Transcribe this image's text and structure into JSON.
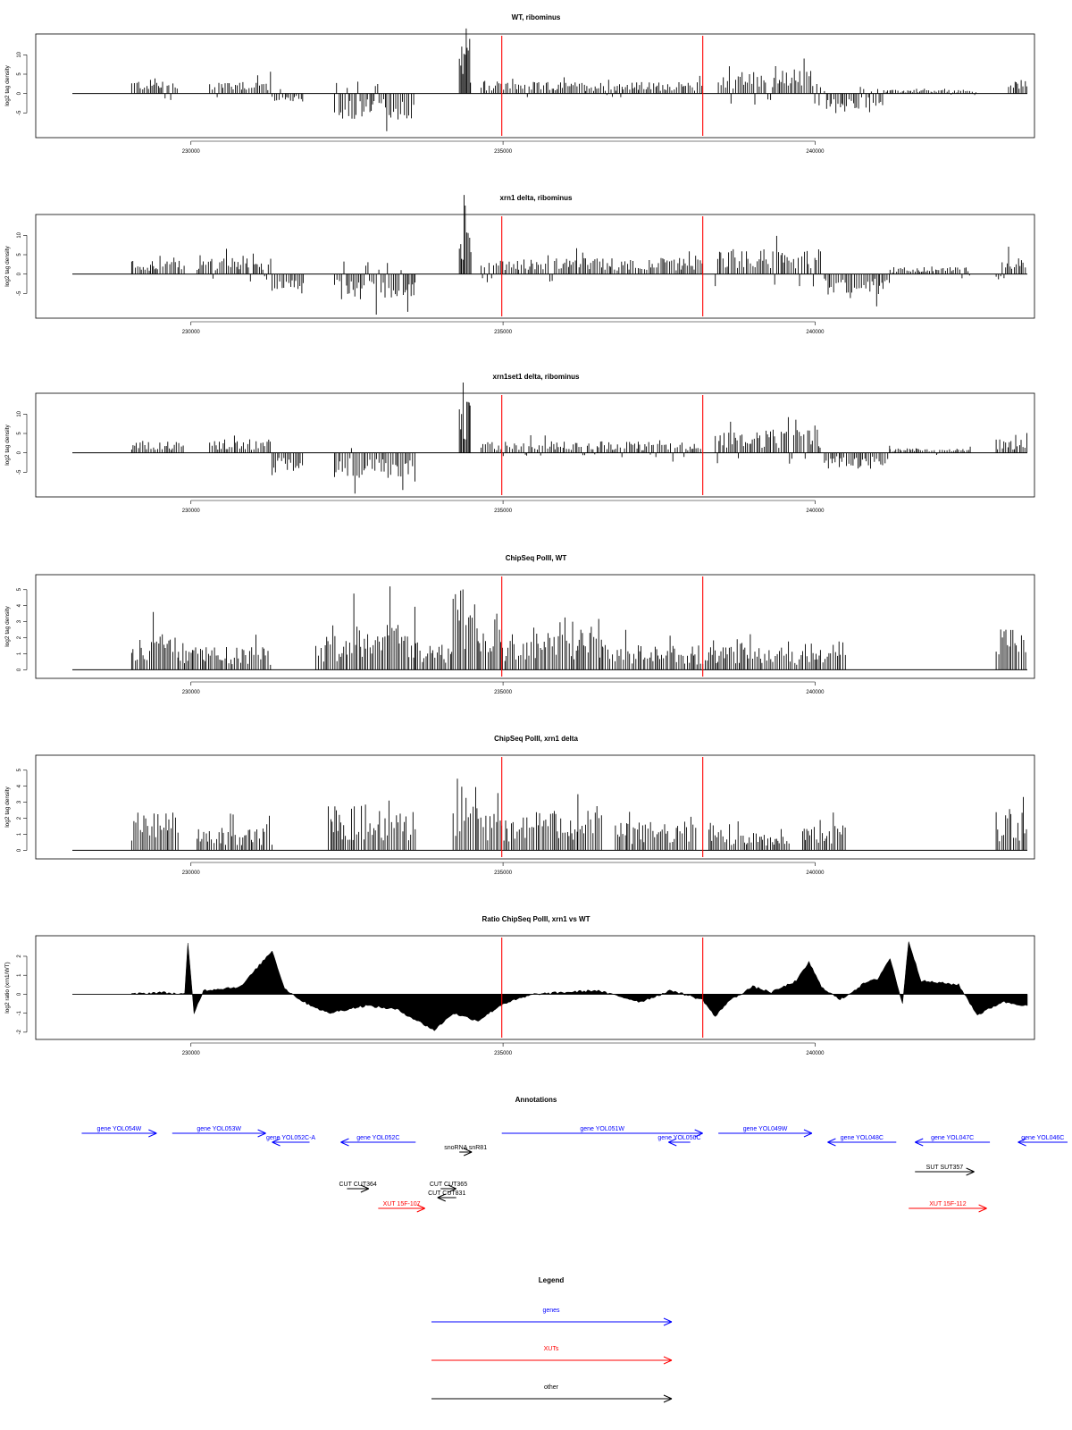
{
  "chart_data": [
    {
      "type": "bar",
      "title": "WT, ribominus",
      "ylabel": "log2 tag density",
      "xlim": [
        228100,
        243400
      ],
      "ylim": [
        -10,
        14
      ],
      "xticks": [
        230000,
        235000,
        240000
      ],
      "yticks": [
        -5,
        0,
        5,
        10
      ],
      "markers": [
        234980,
        238200
      ],
      "series": [
        {
          "segments": [
            {
              "x0": 229050,
              "x1": 229800,
              "level": 3
            },
            {
              "x0": 230300,
              "x1": 231300,
              "level": 3
            },
            {
              "x0": 231300,
              "x1": 231800,
              "level": -2
            },
            {
              "x0": 232300,
              "x1": 233600,
              "level": -5.5
            },
            {
              "x0": 234300,
              "x1": 234480,
              "level": 11
            },
            {
              "x0": 234650,
              "x1": 238200,
              "level": 2.5
            },
            {
              "x0": 238450,
              "x1": 240100,
              "level": 5
            },
            {
              "x0": 240150,
              "x1": 241100,
              "level": -3.5
            },
            {
              "x0": 241100,
              "x1": 242600,
              "level": 0.8
            },
            {
              "x0": 243100,
              "x1": 243400,
              "level": 3
            }
          ]
        }
      ]
    },
    {
      "type": "bar",
      "title": "xrn1 delta, ribominus",
      "ylabel": "log2 tag density",
      "xlim": [
        228100,
        243400
      ],
      "ylim": [
        -10,
        14
      ],
      "xticks": [
        230000,
        235000,
        240000
      ],
      "yticks": [
        -5,
        0,
        5,
        10
      ],
      "markers": [
        234980,
        238200
      ],
      "series": [
        {
          "segments": [
            {
              "x0": 229050,
              "x1": 229900,
              "level": 3
            },
            {
              "x0": 230100,
              "x1": 231300,
              "level": 3.5
            },
            {
              "x0": 231300,
              "x1": 231800,
              "level": -4.5
            },
            {
              "x0": 232300,
              "x1": 233600,
              "level": -5.5
            },
            {
              "x0": 234300,
              "x1": 234500,
              "level": 11
            },
            {
              "x0": 234650,
              "x1": 238200,
              "level": 3.5
            },
            {
              "x0": 238400,
              "x1": 240100,
              "level": 5.5
            },
            {
              "x0": 240150,
              "x1": 241200,
              "level": -4.5
            },
            {
              "x0": 241200,
              "x1": 242500,
              "level": 1.5
            },
            {
              "x0": 242900,
              "x1": 243400,
              "level": 4
            }
          ]
        }
      ]
    },
    {
      "type": "bar",
      "title": "xrn1set1 delta, ribominus",
      "ylabel": "log2 tag density",
      "xlim": [
        228100,
        243400
      ],
      "ylim": [
        -10,
        14
      ],
      "xticks": [
        230000,
        235000,
        240000
      ],
      "yticks": [
        -5,
        0,
        5,
        10
      ],
      "markers": [
        234980,
        238200
      ],
      "series": [
        {
          "segments": [
            {
              "x0": 229050,
              "x1": 229900,
              "level": 2.5
            },
            {
              "x0": 230300,
              "x1": 231300,
              "level": 3
            },
            {
              "x0": 231300,
              "x1": 231800,
              "level": -4
            },
            {
              "x0": 232300,
              "x1": 233600,
              "level": -5.5
            },
            {
              "x0": 234300,
              "x1": 234480,
              "level": 11
            },
            {
              "x0": 234650,
              "x1": 238200,
              "level": 2.5
            },
            {
              "x0": 238400,
              "x1": 240100,
              "level": 5
            },
            {
              "x0": 240150,
              "x1": 241200,
              "level": -3.5
            },
            {
              "x0": 241200,
              "x1": 242500,
              "level": 1
            },
            {
              "x0": 242900,
              "x1": 243400,
              "level": 3
            }
          ]
        }
      ]
    },
    {
      "type": "bar",
      "title": "ChipSeq PolII, WT",
      "ylabel": "log2 tag density",
      "xlim": [
        228100,
        243400
      ],
      "ylim": [
        -0.2,
        5.6
      ],
      "xticks": [
        230000,
        235000,
        240000
      ],
      "yticks": [
        0,
        1,
        2,
        3,
        4,
        5
      ],
      "markers": [
        234980,
        238200
      ],
      "series": [
        {
          "segments": [
            {
              "x0": 229050,
              "x1": 229800,
              "level": 2
            },
            {
              "x0": 229800,
              "x1": 231300,
              "level": 1.2
            },
            {
              "x0": 232000,
              "x1": 232500,
              "level": 1.8
            },
            {
              "x0": 232500,
              "x1": 233600,
              "level": 2.8
            },
            {
              "x0": 233600,
              "x1": 234200,
              "level": 1.5
            },
            {
              "x0": 234200,
              "x1": 234600,
              "level": 4.5
            },
            {
              "x0": 234600,
              "x1": 236200,
              "level": 2
            },
            {
              "x0": 236200,
              "x1": 236600,
              "level": 3
            },
            {
              "x0": 236600,
              "x1": 238200,
              "level": 1.3
            },
            {
              "x0": 238200,
              "x1": 239800,
              "level": 1.2
            },
            {
              "x0": 239800,
              "x1": 240500,
              "level": 1.5
            },
            {
              "x0": 242900,
              "x1": 243400,
              "level": 2.2
            }
          ]
        }
      ]
    },
    {
      "type": "bar",
      "title": "ChipSeq PolII, xrn1 delta",
      "ylabel": "log2 tag density",
      "xlim": [
        228100,
        243400
      ],
      "ylim": [
        -0.2,
        5.6
      ],
      "xticks": [
        230000,
        235000,
        240000
      ],
      "yticks": [
        0,
        1,
        2,
        3,
        4,
        5
      ],
      "markers": [
        234980,
        238200
      ],
      "series": [
        {
          "segments": [
            {
              "x0": 229050,
              "x1": 229800,
              "level": 2
            },
            {
              "x0": 230100,
              "x1": 231300,
              "level": 1.2
            },
            {
              "x0": 232200,
              "x1": 233600,
              "level": 2.4
            },
            {
              "x0": 234200,
              "x1": 234600,
              "level": 3.4
            },
            {
              "x0": 234600,
              "x1": 236200,
              "level": 2
            },
            {
              "x0": 236200,
              "x1": 236600,
              "level": 3.2
            },
            {
              "x0": 236800,
              "x1": 238100,
              "level": 1.5
            },
            {
              "x0": 238300,
              "x1": 239600,
              "level": 1.2
            },
            {
              "x0": 239800,
              "x1": 240500,
              "level": 1.4
            },
            {
              "x0": 242900,
              "x1": 243400,
              "level": 2
            }
          ]
        }
      ]
    },
    {
      "type": "area",
      "title": "Ratio ChipSeq PolII, xrn1 vs WT",
      "ylabel": "log2 ratio (xrn1/WT)",
      "xlim": [
        228100,
        243400
      ],
      "ylim": [
        -2.1,
        2.8
      ],
      "xticks": [
        230000,
        235000,
        240000
      ],
      "yticks": [
        -2,
        -1,
        0,
        1,
        2
      ],
      "markers": [
        234980,
        238200
      ],
      "series": [
        {
          "points": [
            [
              229050,
              0
            ],
            [
              229500,
              0.1
            ],
            [
              229900,
              0
            ],
            [
              229950,
              2.7
            ],
            [
              230050,
              -1.0
            ],
            [
              230200,
              0.2
            ],
            [
              230800,
              0.4
            ],
            [
              231300,
              2.3
            ],
            [
              231500,
              0.3
            ],
            [
              231800,
              -0.4
            ],
            [
              232200,
              -1.0
            ],
            [
              232800,
              -0.6
            ],
            [
              233300,
              -0.8
            ],
            [
              233900,
              -1.9
            ],
            [
              234200,
              -1.0
            ],
            [
              234600,
              -1.4
            ],
            [
              235000,
              -0.5
            ],
            [
              235500,
              0
            ],
            [
              236500,
              0.2
            ],
            [
              237200,
              -0.4
            ],
            [
              237700,
              0.2
            ],
            [
              238200,
              -0.3
            ],
            [
              238400,
              -1.2
            ],
            [
              238600,
              -0.4
            ],
            [
              239000,
              0.4
            ],
            [
              239300,
              0.1
            ],
            [
              239700,
              0.7
            ],
            [
              239900,
              1.7
            ],
            [
              240100,
              0.4
            ],
            [
              240400,
              -0.3
            ],
            [
              240800,
              0.6
            ],
            [
              241000,
              0.8
            ],
            [
              241200,
              1.9
            ],
            [
              241400,
              -0.5
            ],
            [
              241500,
              2.8
            ],
            [
              241700,
              0.7
            ],
            [
              242300,
              0.5
            ],
            [
              242600,
              -1.1
            ],
            [
              243000,
              -0.4
            ],
            [
              243400,
              -0.6
            ]
          ]
        }
      ]
    }
  ],
  "annotations": {
    "title": "Annotations",
    "features": [
      {
        "label": "gene YOL054W",
        "x0": 228250,
        "x1": 229450,
        "strand": "+",
        "row": 0,
        "color": "#0000ff"
      },
      {
        "label": "gene YOL053W",
        "x0": 229700,
        "x1": 231200,
        "strand": "+",
        "row": 0,
        "color": "#0000ff"
      },
      {
        "label": "gene YOL052C-A",
        "x0": 231300,
        "x1": 231900,
        "strand": "-",
        "row": 1,
        "color": "#0000ff"
      },
      {
        "label": "gene YOL052C",
        "x0": 232400,
        "x1": 233600,
        "strand": "-",
        "row": 1,
        "color": "#0000ff"
      },
      {
        "label": "snoRNA snR81",
        "x0": 234300,
        "x1": 234500,
        "strand": "+",
        "row": 2,
        "color": "#000000"
      },
      {
        "label": "gene YOL051W",
        "x0": 234980,
        "x1": 238200,
        "strand": "+",
        "row": 0,
        "color": "#0000ff"
      },
      {
        "label": "gene YOL050C",
        "x0": 237650,
        "x1": 238000,
        "strand": "-",
        "row": 1,
        "color": "#0000ff"
      },
      {
        "label": "gene YOL049W",
        "x0": 238450,
        "x1": 239950,
        "strand": "+",
        "row": 0,
        "color": "#0000ff"
      },
      {
        "label": "gene YOL048C",
        "x0": 240200,
        "x1": 241300,
        "strand": "-",
        "row": 1,
        "color": "#0000ff"
      },
      {
        "label": "gene YOL047C",
        "x0": 241600,
        "x1": 242800,
        "strand": "-",
        "row": 1,
        "color": "#0000ff"
      },
      {
        "label": "gene YOL046C",
        "x0": 243250,
        "x1": 244200,
        "strand": "-",
        "row": 1,
        "color": "#0000ff"
      },
      {
        "label": "SUT SUT357",
        "x0": 241600,
        "x1": 242550,
        "strand": "+",
        "row": 3,
        "color": "#000000"
      },
      {
        "label": "CUT CUT364",
        "x0": 232500,
        "x1": 232850,
        "strand": "+",
        "row": 4,
        "color": "#000000"
      },
      {
        "label": "CUT CUT365",
        "x0": 234000,
        "x1": 234250,
        "strand": "+",
        "row": 4,
        "color": "#000000"
      },
      {
        "label": "CUT CUT831",
        "x0": 233950,
        "x1": 234250,
        "strand": "-",
        "row": 5,
        "color": "#000000"
      },
      {
        "label": "XUT 15F-107",
        "x0": 233000,
        "x1": 233750,
        "strand": "+",
        "row": 6,
        "color": "#ff0000"
      },
      {
        "label": "XUT 15F-112",
        "x0": 241500,
        "x1": 242750,
        "strand": "+",
        "row": 6,
        "color": "#ff0000"
      }
    ]
  },
  "legend": {
    "title": "Legend",
    "items": [
      {
        "label": "genes",
        "color": "#0000ff"
      },
      {
        "label": "XUTs",
        "color": "#ff0000"
      },
      {
        "label": "other",
        "color": "#000000"
      }
    ]
  }
}
